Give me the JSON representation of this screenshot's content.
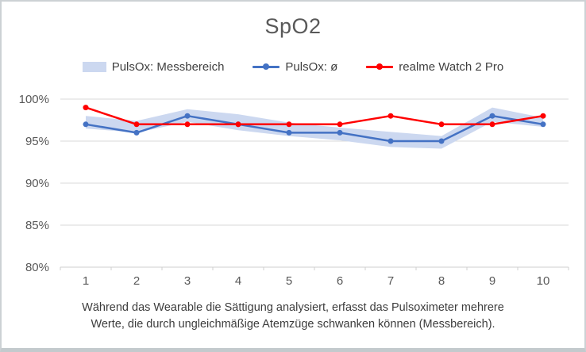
{
  "window": {
    "background": "#ffffff",
    "border_color": "#ccd1d4"
  },
  "chart_data": {
    "type": "line",
    "title": "SpO2",
    "categories": [
      "1",
      "2",
      "3",
      "4",
      "5",
      "6",
      "7",
      "8",
      "9",
      "10"
    ],
    "series": [
      {
        "name": "PulsOx: ø",
        "color": "#4472C4",
        "marker": "circle",
        "values": [
          97,
          96,
          98,
          97,
          96,
          96,
          95,
          95,
          98,
          97
        ]
      },
      {
        "name": "realme Watch 2 Pro",
        "color": "#FF0000",
        "marker": "circle",
        "values": [
          99,
          97,
          97,
          97,
          97,
          97,
          98,
          97,
          97,
          98
        ]
      }
    ],
    "band": {
      "name": "PulsOx: Messbereich",
      "color": "#CCD8F0",
      "lower": [
        96.5,
        96.0,
        97.3,
        96.3,
        95.6,
        95.1,
        94.3,
        94.1,
        97.3,
        96.7
      ],
      "upper": [
        98.0,
        97.4,
        98.8,
        98.2,
        97.2,
        96.6,
        96.1,
        95.6,
        99.0,
        97.8
      ]
    },
    "y_axis": {
      "min": 80,
      "max": 100,
      "ticks": [
        "100%",
        "95%",
        "90%",
        "85%",
        "80%"
      ],
      "tick_values": [
        100,
        95,
        90,
        85,
        80
      ],
      "gridline_color": "#d9d9d9",
      "axis_color": "#cfcfcf",
      "label_color": "#595959"
    },
    "x_axis": {
      "label_color": "#595959"
    },
    "grid": true,
    "legend_position": "top",
    "caption_lines": [
      "Während das Wearable die Sättigung analysiert, erfasst das Pulsoximeter mehrere",
      "Werte, die durch ungleichmäßige Atemzüge schwanken können (Messbereich)."
    ]
  }
}
